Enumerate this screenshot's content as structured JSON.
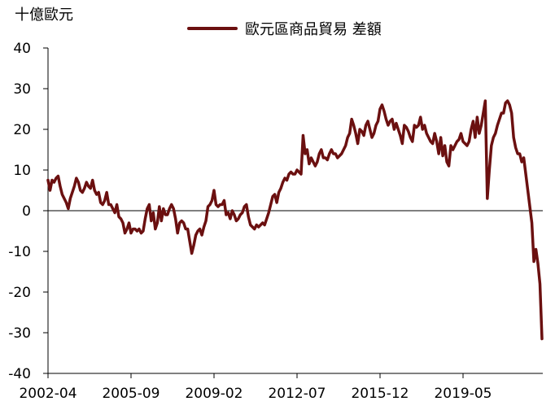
{
  "chart_data": {
    "type": "line",
    "title": "",
    "unit_label": "十億歐元",
    "xlabel": "",
    "ylabel": "",
    "ylim": [
      -40,
      40
    ],
    "yticks": [
      40,
      30,
      20,
      10,
      0,
      -10,
      -20,
      -30,
      -40
    ],
    "xticks": [
      "2002-04",
      "2005-09",
      "2009-02",
      "2012-07",
      "2015-12",
      "2019-05"
    ],
    "legend": {
      "position": "top-center"
    },
    "grid": false,
    "zero_line": true,
    "series": [
      {
        "name": "歐元區商品貿易 差額",
        "color": "#6B1010",
        "x": [
          "2002-04",
          "2002-05",
          "2002-06",
          "2002-07",
          "2002-08",
          "2002-09",
          "2002-10",
          "2002-11",
          "2002-12",
          "2003-01",
          "2003-02",
          "2003-03",
          "2003-04",
          "2003-05",
          "2003-06",
          "2003-07",
          "2003-08",
          "2003-09",
          "2003-10",
          "2003-11",
          "2003-12",
          "2004-01",
          "2004-02",
          "2004-03",
          "2004-04",
          "2004-05",
          "2004-06",
          "2004-07",
          "2004-08",
          "2004-09",
          "2004-10",
          "2004-11",
          "2004-12",
          "2005-01",
          "2005-02",
          "2005-03",
          "2005-04",
          "2005-05",
          "2005-06",
          "2005-07",
          "2005-08",
          "2005-09",
          "2005-10",
          "2005-11",
          "2005-12",
          "2006-01",
          "2006-02",
          "2006-03",
          "2006-04",
          "2006-05",
          "2006-06",
          "2006-07",
          "2006-08",
          "2006-09",
          "2006-10",
          "2006-11",
          "2006-12",
          "2007-01",
          "2007-02",
          "2007-03",
          "2007-04",
          "2007-05",
          "2007-06",
          "2007-07",
          "2007-08",
          "2007-09",
          "2007-10",
          "2007-11",
          "2007-12",
          "2008-01",
          "2008-02",
          "2008-03",
          "2008-04",
          "2008-05",
          "2008-06",
          "2008-07",
          "2008-08",
          "2008-09",
          "2008-10",
          "2008-11",
          "2008-12",
          "2009-01",
          "2009-02",
          "2009-03",
          "2009-04",
          "2009-05",
          "2009-06",
          "2009-07",
          "2009-08",
          "2009-09",
          "2009-10",
          "2009-11",
          "2009-12",
          "2010-01",
          "2010-02",
          "2010-03",
          "2010-04",
          "2010-05",
          "2010-06",
          "2010-07",
          "2010-08",
          "2010-09",
          "2010-10",
          "2010-11",
          "2010-12",
          "2011-01",
          "2011-02",
          "2011-03",
          "2011-04",
          "2011-05",
          "2011-06",
          "2011-07",
          "2011-08",
          "2011-09",
          "2011-10",
          "2011-11",
          "2011-12",
          "2012-01",
          "2012-02",
          "2012-03",
          "2012-04",
          "2012-05",
          "2012-06",
          "2012-07",
          "2012-08",
          "2012-09",
          "2012-10",
          "2012-11",
          "2012-12",
          "2013-01",
          "2013-02",
          "2013-03",
          "2013-04",
          "2013-05",
          "2013-06",
          "2013-07",
          "2013-08",
          "2013-09",
          "2013-10",
          "2013-11",
          "2013-12",
          "2014-01",
          "2014-02",
          "2014-03",
          "2014-04",
          "2014-05",
          "2014-06",
          "2014-07",
          "2014-08",
          "2014-09",
          "2014-10",
          "2014-11",
          "2014-12",
          "2015-01",
          "2015-02",
          "2015-03",
          "2015-04",
          "2015-05",
          "2015-06",
          "2015-07",
          "2015-08",
          "2015-09",
          "2015-10",
          "2015-11",
          "2015-12",
          "2016-01",
          "2016-02",
          "2016-03",
          "2016-04",
          "2016-05",
          "2016-06",
          "2016-07",
          "2016-08",
          "2016-09",
          "2016-10",
          "2016-11",
          "2016-12",
          "2017-01",
          "2017-02",
          "2017-03",
          "2017-04",
          "2017-05",
          "2017-06",
          "2017-07",
          "2017-08",
          "2017-09",
          "2017-10",
          "2017-11",
          "2017-12",
          "2018-01",
          "2018-02",
          "2018-03",
          "2018-04",
          "2018-05",
          "2018-06",
          "2018-07",
          "2018-08",
          "2018-09",
          "2018-10",
          "2018-11",
          "2018-12",
          "2019-01",
          "2019-02",
          "2019-03",
          "2019-04",
          "2019-05",
          "2019-06",
          "2019-07",
          "2019-08",
          "2019-09",
          "2019-10",
          "2019-11",
          "2019-12",
          "2020-01",
          "2020-02",
          "2020-03",
          "2020-04",
          "2020-05",
          "2020-06",
          "2020-07",
          "2020-08",
          "2020-09",
          "2020-10",
          "2020-11",
          "2020-12",
          "2021-01",
          "2021-02",
          "2021-03",
          "2021-04",
          "2021-05",
          "2021-06",
          "2021-07",
          "2021-08",
          "2021-09",
          "2021-10",
          "2021-11",
          "2021-12",
          "2022-01",
          "2022-02",
          "2022-03",
          "2022-04",
          "2022-05",
          "2022-06",
          "2022-07",
          "2022-08"
        ],
        "values": [
          7.5,
          5,
          7.5,
          7,
          8,
          8.5,
          6,
          4,
          3,
          2,
          0.5,
          3,
          4.5,
          6,
          8,
          7,
          5,
          4.5,
          5.5,
          7,
          6,
          5.5,
          7.5,
          5,
          4,
          4.5,
          2,
          1.5,
          2.5,
          4.5,
          1.5,
          1.5,
          0.5,
          -0.5,
          1.5,
          -1.5,
          -2,
          -3,
          -5.5,
          -4.5,
          -3,
          -5.5,
          -4.5,
          -4.5,
          -5,
          -4.5,
          -5.5,
          -5,
          -2,
          0.5,
          1.5,
          -2.5,
          -0.5,
          -4.5,
          -3,
          1,
          -2.5,
          0.5,
          -1,
          -1,
          0.5,
          1.5,
          0.5,
          -2,
          -5.5,
          -3,
          -2.5,
          -3,
          -4.5,
          -4.5,
          -7.5,
          -10.5,
          -8.5,
          -6,
          -5,
          -4.5,
          -6,
          -4,
          -2.5,
          1,
          1.5,
          2.5,
          5,
          1.5,
          1,
          1.5,
          1.5,
          2.5,
          -1,
          -0.5,
          -2,
          0,
          -1,
          -2.5,
          -2,
          -1,
          -0.5,
          1,
          1.5,
          -1.5,
          -3.5,
          -4,
          -4.5,
          -3.5,
          -4,
          -3.5,
          -3,
          -3.5,
          -2,
          -0.5,
          1.5,
          3.5,
          4,
          2,
          4.5,
          5.5,
          7,
          8,
          7.5,
          9,
          9.5,
          9,
          9,
          10,
          9.5,
          9,
          18.5,
          14,
          15,
          11.5,
          13,
          12,
          11,
          12,
          14,
          15,
          13,
          13,
          12.5,
          14,
          15,
          14,
          14,
          13,
          13.5,
          14,
          15,
          16,
          18,
          19,
          22.5,
          21,
          19,
          16.5,
          20,
          19.5,
          18.5,
          21,
          22,
          20,
          18,
          19,
          21,
          22,
          25,
          26,
          24.5,
          22.5,
          21,
          22,
          22.5,
          20,
          21.5,
          20,
          18.5,
          16.5,
          21,
          20.5,
          19.5,
          18,
          17,
          21,
          20.5,
          21,
          23,
          20,
          21,
          19,
          18,
          17,
          16.5,
          19,
          17,
          14,
          18,
          13.5,
          16,
          12,
          11,
          16,
          15,
          16,
          17,
          17.5,
          19,
          17,
          16.5,
          16,
          17,
          20,
          22,
          18,
          23,
          19,
          21,
          24,
          27,
          3,
          10,
          16,
          18,
          19,
          21,
          22.5,
          24,
          24,
          26.5,
          27,
          26,
          24,
          18,
          15.5,
          14,
          14,
          12,
          13,
          9,
          5,
          1,
          -3,
          -12.5,
          -9.5,
          -13,
          -18,
          -31.5
        ]
      }
    ]
  }
}
